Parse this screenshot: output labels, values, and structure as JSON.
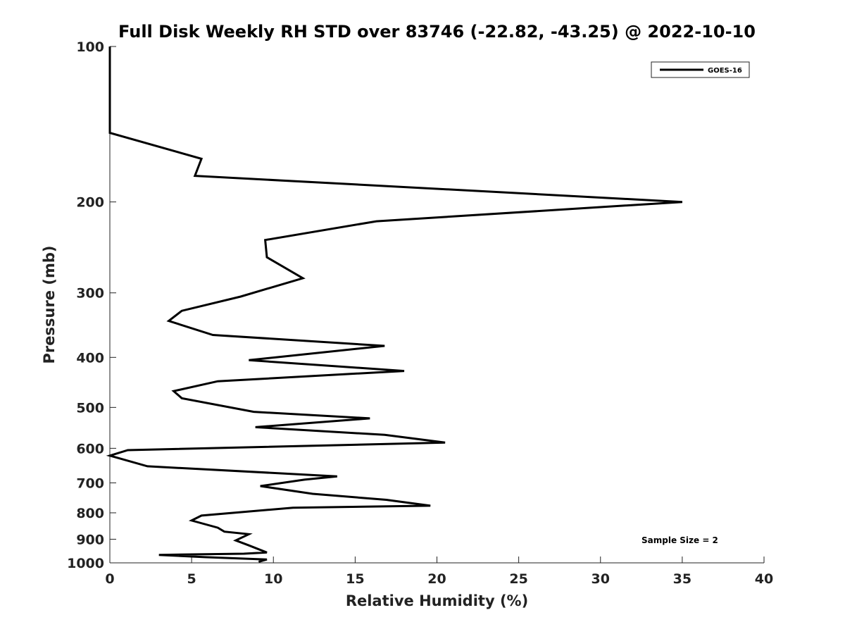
{
  "chart_data": {
    "type": "line",
    "title": "Full Disk Weekly RH STD over 83746 (-22.82, -43.25) @ 2022-10-10",
    "xlabel": "Relative Humidity (%)",
    "ylabel": "Pressure (mb)",
    "xlim": [
      0,
      40
    ],
    "ylim": [
      1000,
      100
    ],
    "y_scale": "log",
    "x_ticks": [
      0,
      5,
      10,
      15,
      20,
      25,
      30,
      35,
      40
    ],
    "y_ticks": [
      100,
      200,
      300,
      400,
      500,
      600,
      700,
      800,
      900,
      1000
    ],
    "legend": {
      "location": "top-right",
      "entries": [
        "GOES-16"
      ]
    },
    "annotation": "Sample Size = 2",
    "series": [
      {
        "name": "GOES-16",
        "color": "#000000",
        "points": [
          [
            0,
            100
          ],
          [
            0,
            115
          ],
          [
            0,
            125
          ],
          [
            0,
            135
          ],
          [
            0,
            147
          ],
          [
            5.6,
            165
          ],
          [
            5.2,
            178
          ],
          [
            35,
            200
          ],
          [
            16.3,
            218
          ],
          [
            9.5,
            237
          ],
          [
            9.6,
            256
          ],
          [
            11.8,
            281
          ],
          [
            8,
            305
          ],
          [
            4.4,
            325
          ],
          [
            3.6,
            340
          ],
          [
            6.3,
            362
          ],
          [
            16.8,
            380
          ],
          [
            8.5,
            405
          ],
          [
            18,
            425
          ],
          [
            6.6,
            445
          ],
          [
            3.9,
            465
          ],
          [
            4.4,
            480
          ],
          [
            8.8,
            510
          ],
          [
            15.9,
            525
          ],
          [
            8.9,
            546
          ],
          [
            16.8,
            565
          ],
          [
            20.5,
            585
          ],
          [
            1.1,
            605
          ],
          [
            0,
            620
          ],
          [
            2.3,
            650
          ],
          [
            13.9,
            680
          ],
          [
            11.9,
            690
          ],
          [
            9.2,
            710
          ],
          [
            12.4,
            735
          ],
          [
            16.9,
            755
          ],
          [
            19.6,
            775
          ],
          [
            11.2,
            782
          ],
          [
            5.6,
            810
          ],
          [
            5,
            828
          ],
          [
            6.6,
            855
          ],
          [
            7,
            870
          ],
          [
            8.5,
            880
          ],
          [
            7.7,
            905
          ],
          [
            8.5,
            925
          ],
          [
            9.6,
            955
          ],
          [
            8.2,
            960
          ],
          [
            3,
            965
          ],
          [
            5.8,
            975
          ],
          [
            9.6,
            985
          ],
          [
            9.1,
            995
          ]
        ]
      }
    ]
  }
}
